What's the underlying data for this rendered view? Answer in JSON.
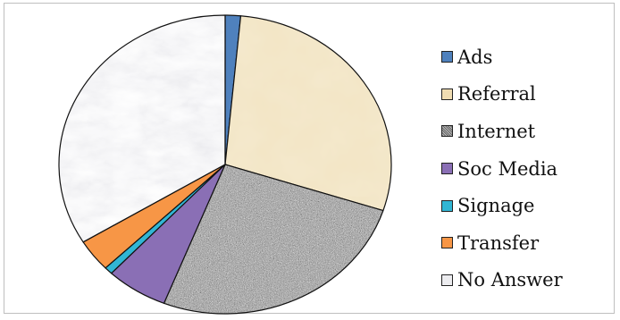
{
  "chart_data": {
    "type": "pie",
    "categories": [
      "Ads",
      "Referral",
      "Internet",
      "Soc Media",
      "Signage",
      "Transfer",
      "No Answer"
    ],
    "values": [
      1.5,
      28.5,
      26.0,
      6.0,
      0.8,
      3.5,
      33.7
    ],
    "start_angle_deg": -90,
    "direction": "clockwise",
    "legend_position": "right",
    "colors": [
      "#4f81bd",
      "#ead9b0",
      "#9a9a9a",
      "#8a6fb5",
      "#31b6d4",
      "#f79646",
      "#e6e6e9"
    ],
    "fills": [
      "solid",
      "parchment",
      "granite",
      "solid",
      "solid",
      "solid",
      "marble"
    ]
  }
}
